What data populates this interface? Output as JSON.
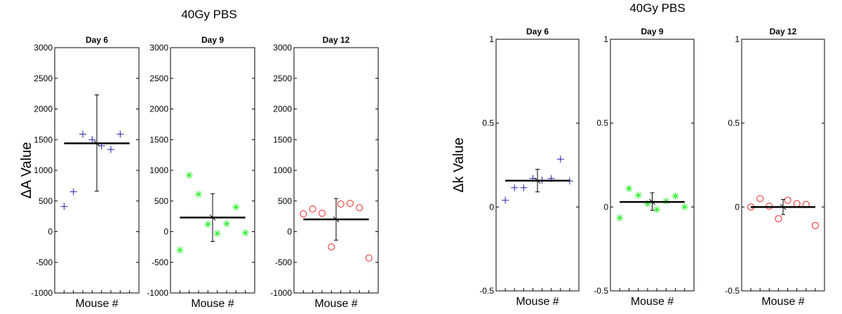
{
  "chart_data": [
    {
      "type": "scatter",
      "title": "40Gy PBS",
      "ylabel": "ΔA Value",
      "xlabel": "Mouse #",
      "ylim": [
        -1000,
        3000
      ],
      "yticks": [
        -1000,
        -500,
        0,
        500,
        1000,
        1500,
        2000,
        2500,
        3000
      ],
      "panels": [
        {
          "title": "Day 6",
          "marker": "plus",
          "color": "#2020b0",
          "x": [
            1,
            2,
            3,
            4,
            5,
            6,
            7,
            8
          ],
          "values": [
            410,
            650,
            1590,
            1500,
            1400,
            1340,
            1590,
            null
          ],
          "mean": 1440,
          "err_low": 660,
          "err_high": 2230,
          "err_x": 4.5
        },
        {
          "title": "Day 9",
          "marker": "asterisk",
          "color": "#22ee22",
          "x": [
            1,
            2,
            3,
            4,
            5,
            6,
            7,
            8
          ],
          "values": [
            -300,
            920,
            610,
            120,
            -30,
            130,
            400,
            -20
          ],
          "mean": 230,
          "err_low": -160,
          "err_high": 620,
          "err_x": 4.5
        },
        {
          "title": "Day 12",
          "marker": "circle",
          "color": "#ee2222",
          "x": [
            1,
            2,
            3,
            4,
            5,
            6,
            7,
            8
          ],
          "values": [
            290,
            370,
            300,
            -250,
            450,
            460,
            390,
            -430
          ],
          "mean": 200,
          "err_low": -140,
          "err_high": 540,
          "err_x": 4.5
        }
      ]
    },
    {
      "type": "scatter",
      "title": "40Gy PBS",
      "ylabel": "Δk Value",
      "xlabel": "Mouse #",
      "ylim": [
        -0.5,
        1
      ],
      "yticks": [
        -0.5,
        0,
        0.5,
        1
      ],
      "panels": [
        {
          "title": "Day 6",
          "marker": "plus",
          "color": "#2020b0",
          "x": [
            1,
            2,
            3,
            4,
            5,
            6,
            7,
            8
          ],
          "values": [
            0.04,
            0.115,
            0.115,
            0.17,
            0.16,
            0.17,
            0.285,
            0.155
          ],
          "mean": 0.157,
          "err_low": 0.09,
          "err_high": 0.225,
          "err_x": 4.5
        },
        {
          "title": "Day 9",
          "marker": "asterisk",
          "color": "#22ee22",
          "x": [
            1,
            2,
            3,
            4,
            5,
            6,
            7,
            8
          ],
          "values": [
            -0.065,
            0.11,
            0.07,
            0.02,
            -0.015,
            0.035,
            0.065,
            0.0
          ],
          "mean": 0.03,
          "err_low": -0.02,
          "err_high": 0.085,
          "err_x": 4.5
        },
        {
          "title": "Day 12",
          "marker": "circle",
          "color": "#ee2222",
          "x": [
            1,
            2,
            3,
            4,
            5,
            6,
            7,
            8
          ],
          "values": [
            0.0,
            0.05,
            0.005,
            -0.07,
            0.04,
            0.02,
            0.015,
            -0.11
          ],
          "mean": 0.0,
          "err_low": -0.045,
          "err_high": 0.045,
          "err_x": 4.5
        }
      ]
    }
  ]
}
